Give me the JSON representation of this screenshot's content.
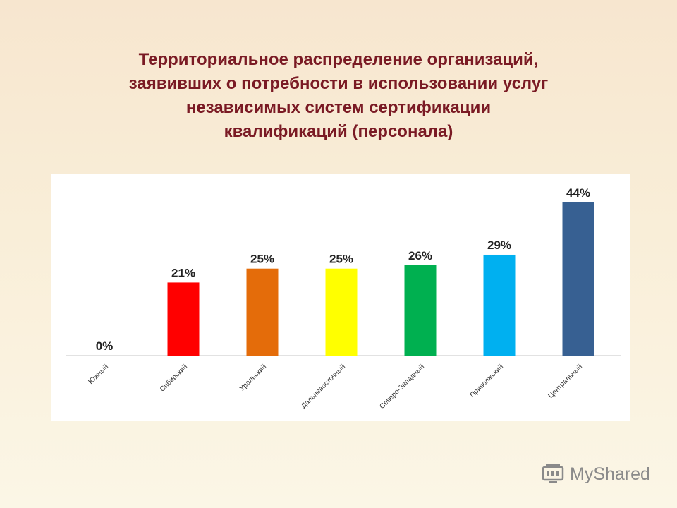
{
  "title_lines": [
    "Территориальное распределение организаций,",
    "заявивших о потребности в использовании услуг",
    "независимых систем сертификации",
    "квалификаций (персонала)"
  ],
  "chart_data": {
    "type": "bar",
    "title": "Территориальное распределение организаций, заявивших о потребности в использовании услуг независимых систем сертификации квалификаций (персонала)",
    "categories": [
      "Южный",
      "Сибирский",
      "Уральский",
      "Дальневосточный",
      "Северо-Западный",
      "Приволжский",
      "Центральный"
    ],
    "values": [
      0,
      21,
      25,
      25,
      26,
      29,
      44
    ],
    "data_labels": [
      "0%",
      "21%",
      "25%",
      "25%",
      "26%",
      "29%",
      "44%"
    ],
    "colors": [
      "#ffffff",
      "#ff0000",
      "#e46c0a",
      "#ffff00",
      "#00b050",
      "#00b0f0",
      "#376092"
    ],
    "ylim": [
      0,
      44
    ],
    "xlabel": "",
    "ylabel": "",
    "grid": false,
    "legend": "none"
  },
  "watermark": {
    "brand": "MyShared",
    "icon": "myshared-logo-icon"
  }
}
